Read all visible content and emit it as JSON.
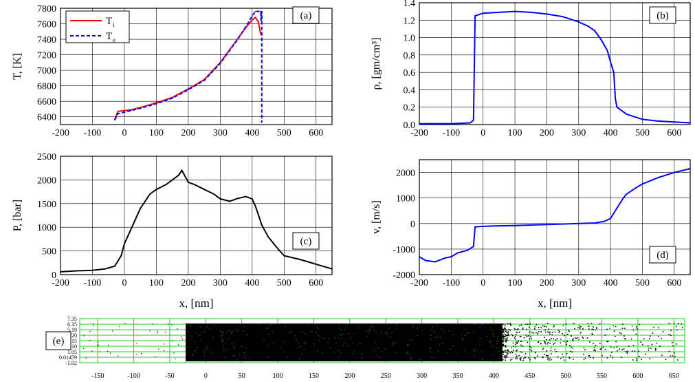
{
  "chart_data": [
    {
      "id": "a",
      "type": "line",
      "panel_label": "(a)",
      "ylabel": "T, [K]",
      "xlabel": "",
      "xlim": [
        -200,
        650
      ],
      "ylim": [
        6300,
        7800
      ],
      "xticks": [
        -200,
        -100,
        0,
        100,
        200,
        300,
        400,
        500,
        600
      ],
      "yticks": [
        6400,
        6600,
        6800,
        7000,
        7200,
        7400,
        7600,
        7800
      ],
      "grid": true,
      "legend_position": "top-left",
      "series": [
        {
          "name": "T_i",
          "legend_main": "T",
          "legend_sub": "i",
          "color": "#ff0000",
          "style": "solid",
          "x": [
            -30,
            -20,
            0,
            20,
            50,
            100,
            150,
            200,
            250,
            300,
            350,
            380,
            400,
            410,
            420,
            425,
            428
          ],
          "y": [
            6370,
            6470,
            6480,
            6490,
            6520,
            6580,
            6650,
            6760,
            6880,
            7100,
            7380,
            7550,
            7650,
            7680,
            7620,
            7500,
            7460
          ]
        },
        {
          "name": "T_e",
          "legend_main": "T",
          "legend_sub": "e",
          "color": "#0000ff",
          "style": "dashed",
          "x": [
            -30,
            -20,
            0,
            20,
            50,
            100,
            150,
            200,
            250,
            300,
            350,
            380,
            400,
            410,
            420,
            427,
            428,
            430,
            430
          ],
          "y": [
            6360,
            6440,
            6460,
            6480,
            6510,
            6570,
            6640,
            6750,
            6870,
            7090,
            7370,
            7560,
            7700,
            7760,
            7760,
            7760,
            7640,
            7760,
            6330
          ]
        }
      ]
    },
    {
      "id": "b",
      "type": "line",
      "panel_label": "(b)",
      "ylabel": "ρ, [gm/cm³]",
      "xlabel": "",
      "xlim": [
        -200,
        650
      ],
      "ylim": [
        0.0,
        1.4
      ],
      "xticks": [
        -200,
        -100,
        0,
        100,
        200,
        300,
        400,
        500,
        600
      ],
      "yticks": [
        0.0,
        0.2,
        0.4,
        0.6,
        0.8,
        1.0,
        1.2,
        1.4
      ],
      "grid": true,
      "series": [
        {
          "color": "#0000ff",
          "x": [
            -200,
            -100,
            -40,
            -30,
            -25,
            0,
            50,
            100,
            150,
            200,
            250,
            300,
            330,
            350,
            370,
            390,
            400,
            410,
            415,
            420,
            450,
            500,
            550,
            600,
            650
          ],
          "y": [
            0.01,
            0.01,
            0.02,
            0.05,
            1.25,
            1.28,
            1.29,
            1.3,
            1.29,
            1.27,
            1.24,
            1.18,
            1.13,
            1.08,
            0.98,
            0.85,
            0.72,
            0.6,
            0.3,
            0.2,
            0.12,
            0.06,
            0.04,
            0.03,
            0.02
          ]
        }
      ]
    },
    {
      "id": "c",
      "type": "line",
      "panel_label": "(c)",
      "ylabel": "P, [bar]",
      "xlabel": "x, [nm]",
      "xlim": [
        -200,
        650
      ],
      "ylim": [
        0,
        2500
      ],
      "xticks": [
        -200,
        -100,
        0,
        100,
        200,
        300,
        400,
        500,
        600
      ],
      "yticks": [
        0,
        500,
        1000,
        1500,
        2000,
        2500
      ],
      "grid": true,
      "series": [
        {
          "color": "#000000",
          "x": [
            -200,
            -150,
            -100,
            -60,
            -30,
            -10,
            0,
            10,
            30,
            50,
            80,
            100,
            130,
            150,
            170,
            180,
            200,
            220,
            250,
            280,
            300,
            330,
            350,
            380,
            400,
            410,
            430,
            450,
            480,
            500,
            550,
            600,
            650
          ],
          "y": [
            60,
            80,
            90,
            120,
            180,
            400,
            650,
            800,
            1100,
            1400,
            1700,
            1800,
            1900,
            2000,
            2100,
            2200,
            1950,
            1900,
            1800,
            1700,
            1600,
            1550,
            1600,
            1650,
            1600,
            1450,
            1050,
            800,
            550,
            400,
            320,
            220,
            120
          ]
        }
      ]
    },
    {
      "id": "d",
      "type": "line",
      "panel_label": "(d)",
      "ylabel": "v, [m/s]",
      "xlabel": "x, [nm]",
      "xlim": [
        -200,
        650
      ],
      "ylim": [
        -2000,
        2500
      ],
      "xticks": [
        -200,
        -100,
        0,
        100,
        200,
        300,
        400,
        500,
        600
      ],
      "yticks": [
        -2000,
        -1000,
        0,
        1000,
        2000
      ],
      "grid": true,
      "series": [
        {
          "color": "#0000ff",
          "x": [
            -200,
            -180,
            -150,
            -120,
            -100,
            -80,
            -50,
            -30,
            -25,
            0,
            50,
            100,
            150,
            200,
            250,
            300,
            350,
            380,
            400,
            420,
            440,
            450,
            480,
            500,
            550,
            600,
            650
          ],
          "y": [
            -1300,
            -1450,
            -1500,
            -1350,
            -1300,
            -1150,
            -1050,
            -900,
            -130,
            -110,
            -90,
            -80,
            -60,
            -40,
            -20,
            0,
            20,
            80,
            200,
            600,
            1000,
            1150,
            1400,
            1550,
            1800,
            2000,
            2150
          ]
        }
      ]
    },
    {
      "id": "e",
      "type": "scatter",
      "panel_label": "(e)",
      "xlim": [
        -175,
        665
      ],
      "ylim": [
        -1.02,
        7.35
      ],
      "xticks": [
        -150,
        -100,
        -50,
        0,
        50,
        100,
        150,
        200,
        250,
        300,
        350,
        400,
        450,
        500,
        550,
        600,
        650
      ],
      "ytick_labels": [
        "7.35",
        "6.35",
        "5.19",
        "4.20",
        "3.15",
        "2.10",
        "1.05",
        "0.01459",
        "-1.02"
      ],
      "grid": true,
      "grid_color": "#22cc22",
      "dense_region": [
        -28,
        412
      ],
      "sparse_region": [
        412,
        665
      ],
      "point_color": "#000000"
    }
  ]
}
